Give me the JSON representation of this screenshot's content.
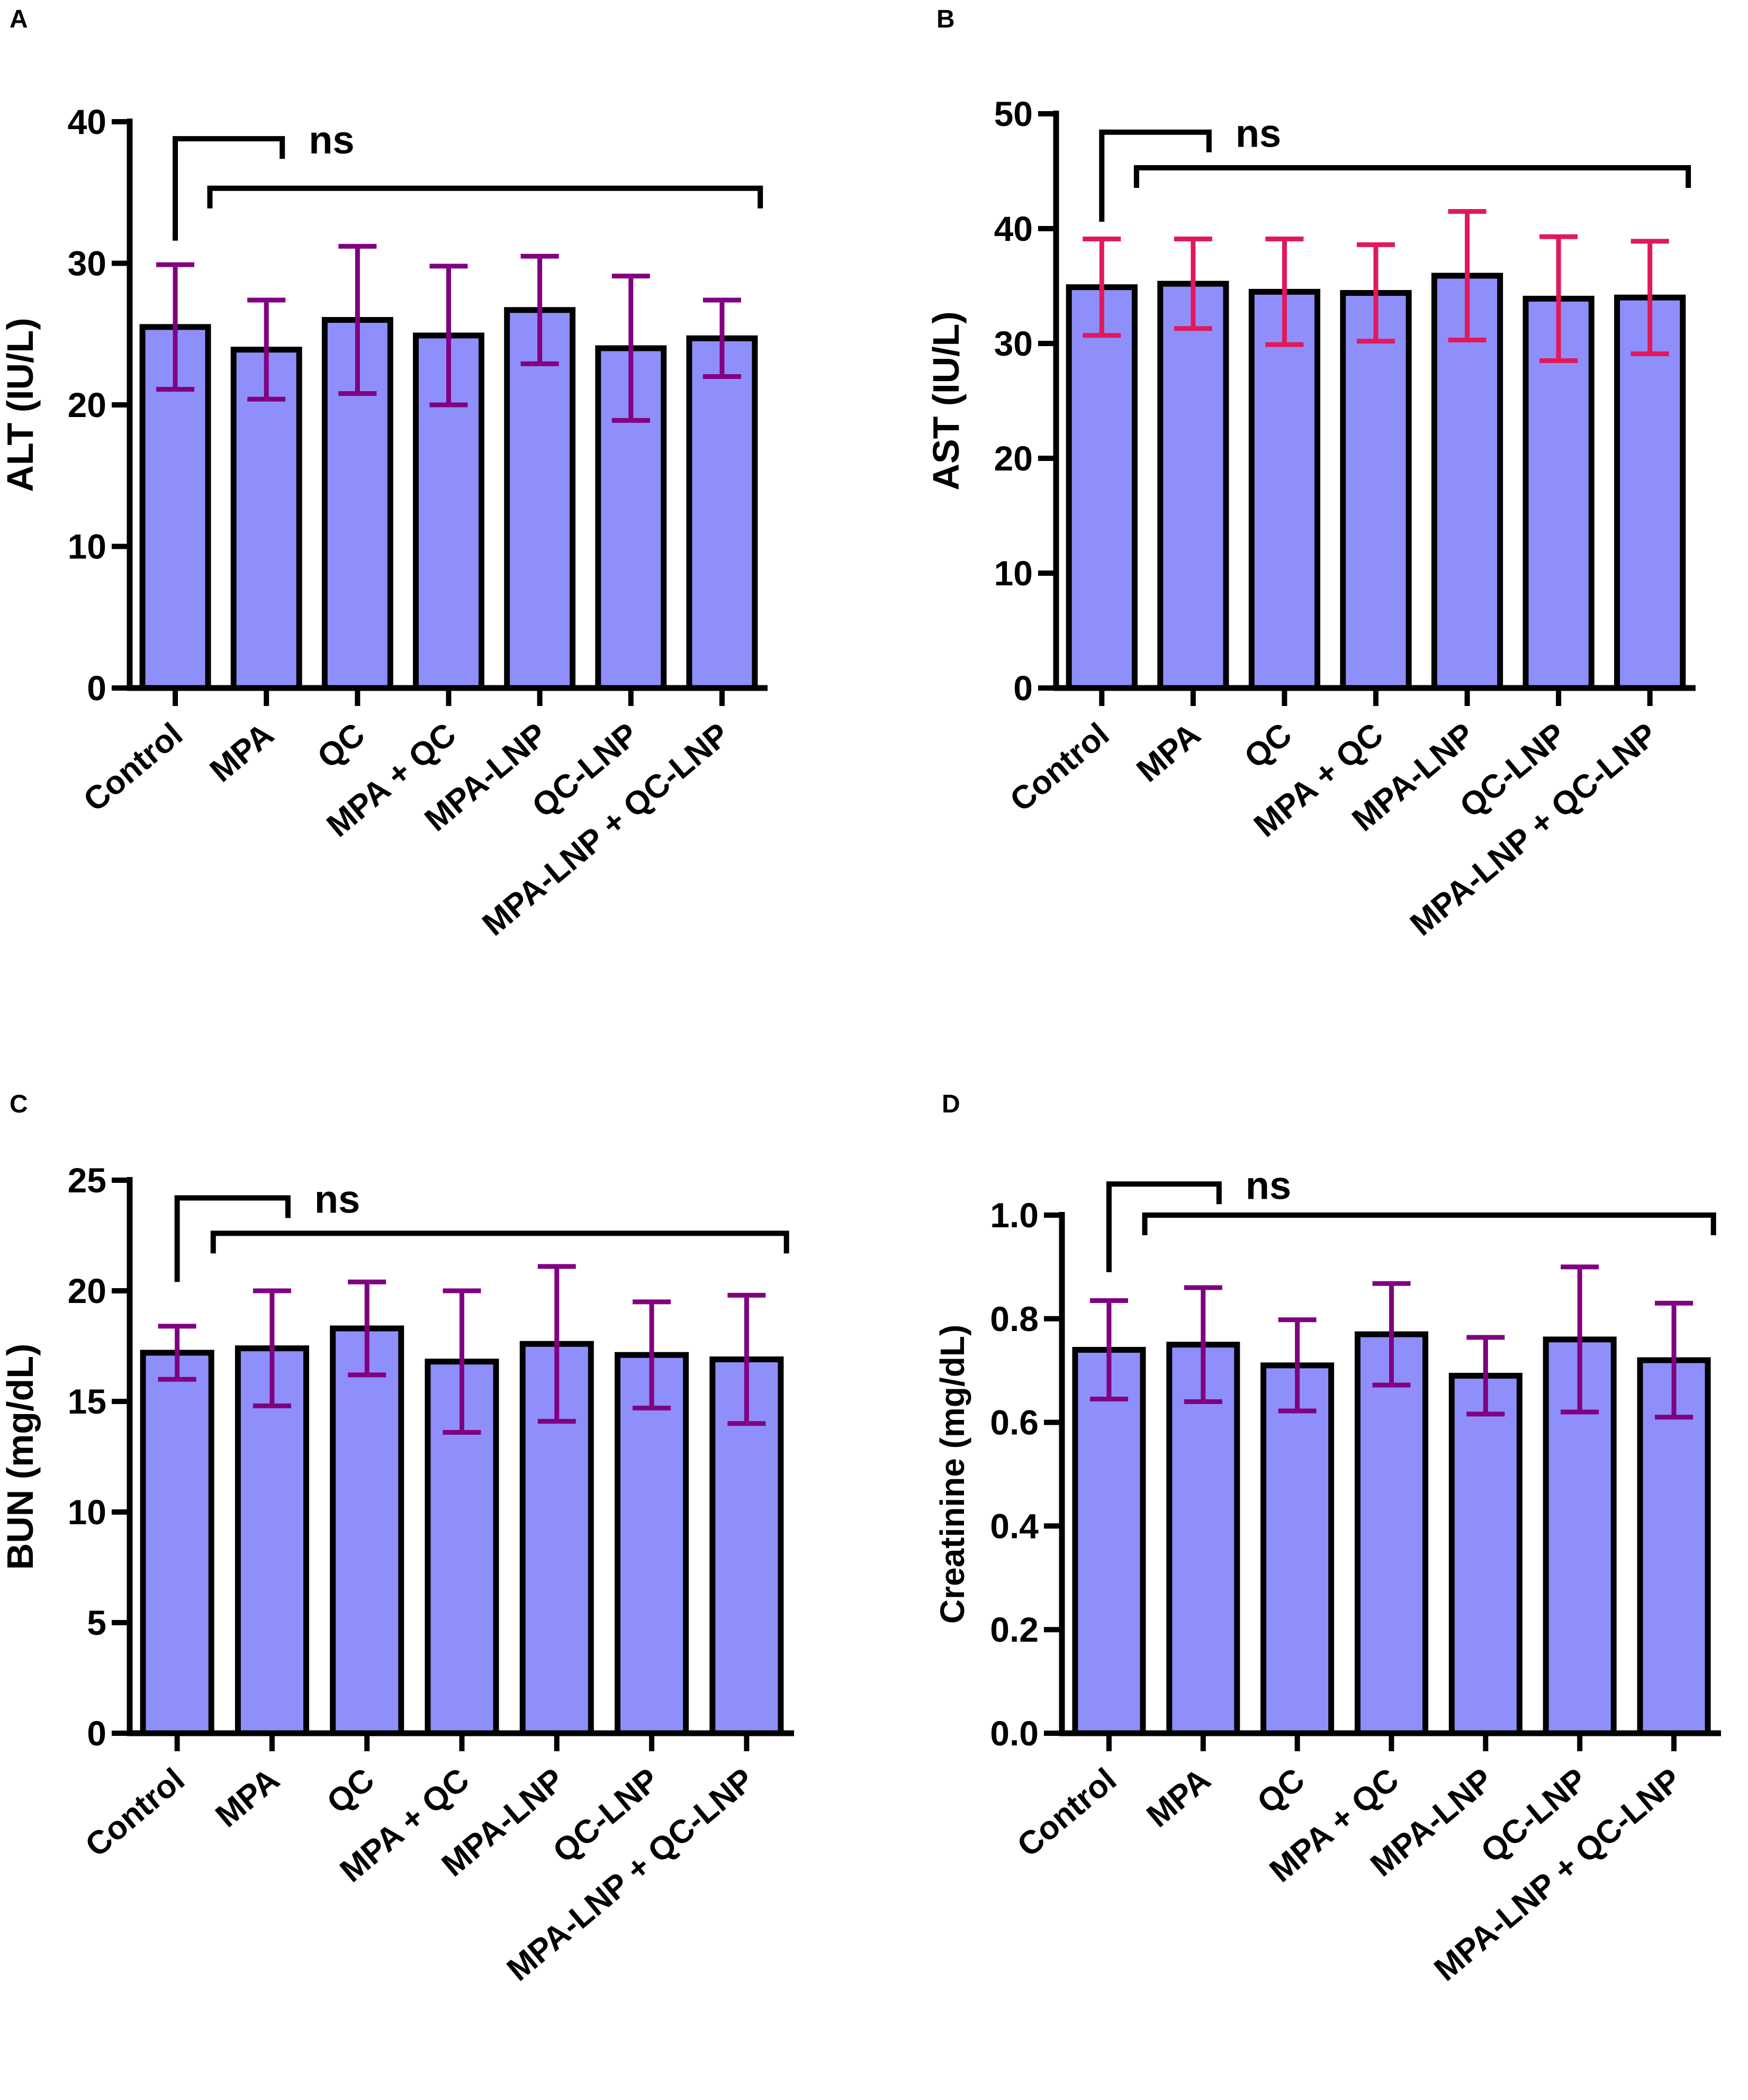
{
  "figure": {
    "panels": [
      {
        "letter": "A"
      },
      {
        "letter": "B"
      },
      {
        "letter": "C"
      },
      {
        "letter": "D"
      }
    ]
  },
  "colors": {
    "bar_fill": "#8f8ffb",
    "bar_stroke": "#000000",
    "error_purple": "#800080",
    "error_crimson": "#e0195a"
  },
  "chart_data": [
    {
      "type": "bar",
      "panel": "A",
      "title": "",
      "xlabel": "",
      "ylabel": "ALT (IU/L)",
      "categories": [
        "Control",
        "MPA",
        "QC",
        "MPA + QC",
        "MPA-LNP",
        "QC-LNP",
        "MPA-LNP + QC-LNP"
      ],
      "values": [
        25.5,
        23.9,
        26.0,
        24.9,
        26.7,
        24.0,
        24.7
      ],
      "error": [
        4.4,
        3.5,
        5.2,
        4.9,
        3.8,
        5.1,
        2.7
      ],
      "ylim": [
        0,
        40
      ],
      "yticks": [
        0,
        10,
        20,
        30,
        40
      ],
      "ytick_labels": [
        "0",
        "10",
        "20",
        "30",
        "40"
      ],
      "error_color": "#800080",
      "annotation": "ns",
      "bracket_short_y": 38.8,
      "bracket_long_y": 35.3,
      "bracket_short_drop_y": 31.6
    },
    {
      "type": "bar",
      "panel": "B",
      "title": "",
      "xlabel": "",
      "ylabel": "AST (IU/L)",
      "categories": [
        "Control",
        "MPA",
        "QC",
        "MPA + QC",
        "MPA-LNP",
        "QC-LNP",
        "MPA-LNP + QC-LNP"
      ],
      "values": [
        34.9,
        35.2,
        34.5,
        34.4,
        35.9,
        33.9,
        34.0
      ],
      "error": [
        4.2,
        3.9,
        4.6,
        4.2,
        5.6,
        5.4,
        4.9
      ],
      "ylim": [
        0,
        50
      ],
      "yticks": [
        0,
        10,
        20,
        30,
        40,
        50
      ],
      "ytick_labels": [
        "0",
        "10",
        "20",
        "30",
        "40",
        "50"
      ],
      "error_color": "#e0195a",
      "annotation": "ns",
      "bracket_short_y": 48.4,
      "bracket_long_y": 45.3,
      "bracket_short_drop_y": 40.6
    },
    {
      "type": "bar",
      "panel": "C",
      "title": "",
      "xlabel": "",
      "ylabel": "BUN (mg/dL)",
      "categories": [
        "Control",
        "MPA",
        "QC",
        "MPA + QC",
        "MPA-LNP",
        "QC-LNP",
        "MPA-LNP + QC-LNP"
      ],
      "values": [
        17.2,
        17.4,
        18.3,
        16.8,
        17.6,
        17.1,
        16.9
      ],
      "error": [
        1.2,
        2.6,
        2.1,
        3.2,
        3.5,
        2.4,
        2.9
      ],
      "ylim": [
        0,
        25
      ],
      "yticks": [
        0,
        5,
        10,
        15,
        20,
        25
      ],
      "ytick_labels": [
        "0",
        "5",
        "10",
        "15",
        "20",
        "25"
      ],
      "error_color": "#800080",
      "annotation": "ns",
      "bracket_short_y": 24.2,
      "bracket_long_y": 22.6,
      "bracket_short_drop_y": 20.4
    },
    {
      "type": "bar",
      "panel": "D",
      "title": "",
      "xlabel": "",
      "ylabel": "Creatinine (mg/dL)",
      "categories": [
        "Control",
        "MPA",
        "QC",
        "MPA + QC",
        "MPA-LNP",
        "QC-LNP",
        "MPA-LNP + QC-LNP"
      ],
      "values": [
        0.74,
        0.75,
        0.71,
        0.77,
        0.69,
        0.76,
        0.72
      ],
      "error": [
        0.095,
        0.11,
        0.088,
        0.098,
        0.074,
        0.14,
        0.11
      ],
      "ylim": [
        0,
        1.0
      ],
      "yticks": [
        0,
        0.2,
        0.4,
        0.6,
        0.8,
        1.0
      ],
      "ytick_labels": [
        "0.0",
        "0.2",
        "0.4",
        "0.6",
        "0.8",
        "1.0"
      ],
      "error_color": "#800080",
      "annotation": "ns",
      "bracket_short_y": 1.06,
      "bracket_long_y": 1.0,
      "bracket_short_drop_y": 0.89
    }
  ]
}
